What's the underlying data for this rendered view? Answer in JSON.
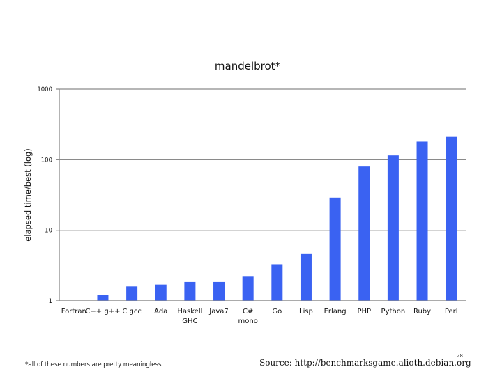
{
  "slide": {
    "footnote": "*all of these numbers are pretty meaningless",
    "source": "Source: http://benchmarksgame.alioth.debian.org",
    "page_number": "28"
  },
  "chart_data": {
    "type": "bar",
    "title": "mandelbrot*",
    "xlabel": "",
    "ylabel": "elapsed time/best (log)",
    "yscale": "log",
    "ylim": [
      1,
      1000
    ],
    "yticks": [
      {
        "value": 1,
        "label": "1"
      },
      {
        "value": 10,
        "label": "10"
      },
      {
        "value": 100,
        "label": "100"
      },
      {
        "value": 1000,
        "label": "1000"
      }
    ],
    "grid": true,
    "legend": "none",
    "color": "#3a62f2",
    "categories": [
      [
        "Fortran"
      ],
      [
        "C++ g++"
      ],
      [
        "C gcc"
      ],
      [
        "Ada"
      ],
      [
        "Haskell",
        "GHC"
      ],
      [
        "Java7"
      ],
      [
        "C#",
        "mono"
      ],
      [
        "Go"
      ],
      [
        "Lisp"
      ],
      [
        "Erlang"
      ],
      [
        "PHP"
      ],
      [
        "Python"
      ],
      [
        "Ruby"
      ],
      [
        "Perl"
      ]
    ],
    "values": [
      1.0,
      1.2,
      1.6,
      1.7,
      1.85,
      1.85,
      2.2,
      3.3,
      4.6,
      29,
      80,
      115,
      180,
      210
    ]
  }
}
